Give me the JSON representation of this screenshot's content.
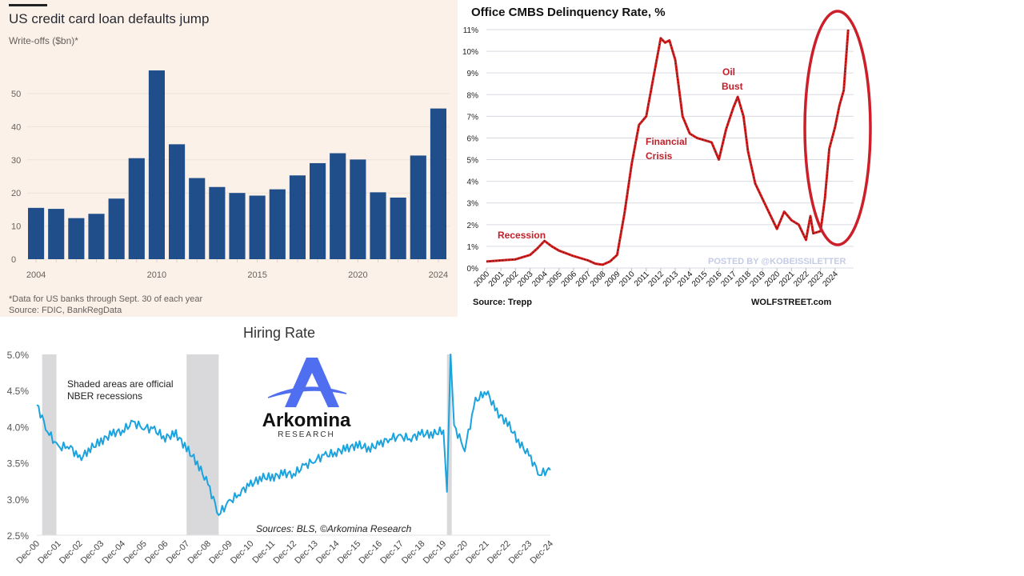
{
  "panels": {
    "ft": {
      "title": "US credit card loan defaults jump",
      "subtitle": "Write-offs ($bn)*",
      "footnote": "*Data for US banks through Sept. 30 of each year",
      "source": "Source: FDIC, BankRegData",
      "bar_color": "#1f4e8a",
      "bg_color": "#fcf1e8"
    },
    "wolf": {
      "title": "Office CMBS Delinquency Rate, %",
      "source": "Source: Trepp",
      "brand": "WOLFSTREET.com",
      "watermark": "POSTED BY @KOBEISSILETTER",
      "annotations": [
        "Recession",
        "Financial",
        "Crisis",
        "Oil",
        "Bust"
      ],
      "annotation_color": "#c0202a",
      "line_color": "#d41f1f",
      "circle_color": "#cc1f2a"
    },
    "hiring": {
      "title": "Hiring Rate",
      "note_line1": "Shaded areas are official",
      "note_line2": "NBER recessions",
      "sources": "Sources: BLS, ©Arkomina Research",
      "logo_name": "Arkomina",
      "logo_sub": "RESEARCH",
      "line_color": "#1ba3de",
      "shade_color": "#d9d9dc",
      "logo_color": "#4f6ef0"
    }
  },
  "chart_data": [
    {
      "type": "bar",
      "title": "US credit card loan defaults jump",
      "subtitle": "Write-offs ($bn)*",
      "xlabel": "",
      "ylabel": "Write-offs ($bn)",
      "categories": [
        "2004",
        "2005",
        "2006",
        "2007",
        "2008",
        "2009",
        "2010",
        "2011",
        "2012",
        "2013",
        "2014",
        "2015",
        "2016",
        "2017",
        "2018",
        "2019",
        "2020",
        "2021",
        "2022",
        "2023",
        "2024"
      ],
      "values": [
        15.5,
        15.2,
        12.4,
        13.7,
        18.3,
        30.5,
        57.0,
        34.7,
        24.5,
        21.8,
        20.0,
        19.2,
        21.1,
        25.3,
        29.0,
        32.0,
        30.1,
        20.2,
        18.6,
        31.3,
        45.5
      ],
      "yticks": [
        0,
        10,
        20,
        30,
        40,
        50
      ],
      "xticks": [
        "2004",
        "2010",
        "2015",
        "2020",
        "2024"
      ],
      "ylim": [
        0,
        58
      ],
      "grid": true,
      "legend": "none"
    },
    {
      "type": "line",
      "title": "Office CMBS Delinquency Rate, %",
      "xlabel": "",
      "ylabel": "%",
      "x": [
        2000.0,
        2001.0,
        2002.0,
        2003.0,
        2003.5,
        2004.0,
        2004.5,
        2005.0,
        2006.0,
        2007.0,
        2007.5,
        2008.0,
        2008.5,
        2009.0,
        2009.5,
        2010.0,
        2010.5,
        2011.0,
        2011.5,
        2012.0,
        2012.3,
        2012.6,
        2013.0,
        2013.5,
        2014.0,
        2014.5,
        2015.0,
        2015.5,
        2016.0,
        2016.5,
        2017.0,
        2017.3,
        2017.7,
        2018.0,
        2018.5,
        2019.0,
        2019.5,
        2020.0,
        2020.5,
        2021.0,
        2021.5,
        2022.0,
        2022.3,
        2022.5,
        2023.0,
        2023.3,
        2023.6,
        2024.0,
        2024.3,
        2024.6,
        2024.9
      ],
      "values": [
        0.3,
        0.35,
        0.4,
        0.6,
        0.9,
        1.25,
        1.0,
        0.8,
        0.55,
        0.35,
        0.2,
        0.15,
        0.3,
        0.6,
        2.5,
        4.8,
        6.6,
        7.0,
        8.8,
        10.6,
        10.4,
        10.5,
        9.6,
        7.0,
        6.2,
        6.0,
        5.9,
        5.8,
        5.0,
        6.4,
        7.4,
        7.9,
        7.0,
        5.4,
        3.9,
        3.2,
        2.5,
        1.8,
        2.6,
        2.2,
        2.0,
        1.3,
        2.4,
        1.6,
        1.7,
        3.2,
        5.5,
        6.5,
        7.5,
        8.2,
        11.0
      ],
      "yticks": [
        "0%",
        "1%",
        "2%",
        "3%",
        "4%",
        "5%",
        "6%",
        "7%",
        "8%",
        "9%",
        "10%",
        "11%"
      ],
      "xticks": [
        "2000",
        "2001",
        "2002",
        "2003",
        "2004",
        "2005",
        "2006",
        "2007",
        "2008",
        "2009",
        "2010",
        "2011",
        "2012",
        "2013",
        "2014",
        "2015",
        "2016",
        "2017",
        "2018",
        "2019",
        "2020",
        "2021",
        "2022",
        "2023",
        "2024"
      ],
      "ylim": [
        0,
        11
      ],
      "annotations": [
        "Recession",
        "Financial Crisis",
        "Oil Bust"
      ],
      "highlight": "red ellipse around 2023-2024 surge",
      "grid": true,
      "legend": "none"
    },
    {
      "type": "line",
      "title": "Hiring Rate",
      "xlabel": "",
      "ylabel": "",
      "x": [
        "Dec-00",
        "Jun-01",
        "Dec-01",
        "Jun-02",
        "Dec-02",
        "Jun-03",
        "Dec-03",
        "Jun-04",
        "Dec-04",
        "Jun-05",
        "Dec-05",
        "Jun-06",
        "Dec-06",
        "Jun-07",
        "Dec-07",
        "Jun-08",
        "Dec-08",
        "Jun-09",
        "Dec-09",
        "Jun-10",
        "Dec-10",
        "Jun-11",
        "Dec-11",
        "Jun-12",
        "Dec-12",
        "Jun-13",
        "Dec-13",
        "Jun-14",
        "Dec-14",
        "Jun-15",
        "Dec-15",
        "Jun-16",
        "Dec-16",
        "Jun-17",
        "Dec-17",
        "Jun-18",
        "Dec-18",
        "Jun-19",
        "Dec-19",
        "Feb-20",
        "Apr-20",
        "Jun-20",
        "Dec-20",
        "Jun-21",
        "Dec-21",
        "Jun-22",
        "Dec-22",
        "Jun-23",
        "Dec-23",
        "Jun-24",
        "Dec-24"
      ],
      "values": [
        4.3,
        3.95,
        3.7,
        3.75,
        3.55,
        3.7,
        3.8,
        3.9,
        3.95,
        4.05,
        4.0,
        3.95,
        3.85,
        3.9,
        3.7,
        3.5,
        3.2,
        2.8,
        2.95,
        3.1,
        3.2,
        3.3,
        3.3,
        3.35,
        3.35,
        3.45,
        3.55,
        3.6,
        3.65,
        3.7,
        3.75,
        3.7,
        3.75,
        3.85,
        3.85,
        3.85,
        3.9,
        3.9,
        3.95,
        3.1,
        5.0,
        4.0,
        3.7,
        4.35,
        4.5,
        4.2,
        4.05,
        3.8,
        3.6,
        3.35,
        3.4
      ],
      "yticks": [
        "2.5%",
        "3.0%",
        "3.5%",
        "4.0%",
        "4.5%",
        "5.0%"
      ],
      "xticks": [
        "Dec-00",
        "Dec-01",
        "Dec-02",
        "Dec-03",
        "Dec-04",
        "Dec-05",
        "Dec-06",
        "Dec-07",
        "Dec-08",
        "Dec-09",
        "Dec-10",
        "Dec-11",
        "Dec-12",
        "Dec-13",
        "Dec-14",
        "Dec-15",
        "Dec-16",
        "Dec-17",
        "Dec-18",
        "Dec-19",
        "Dec-20",
        "Dec-21",
        "Dec-22",
        "Dec-23",
        "Dec-24"
      ],
      "ylim": [
        2.5,
        5.0
      ],
      "shaded_recessions": [
        [
          "Mar-01",
          "Nov-01"
        ],
        [
          "Dec-07",
          "Jun-09"
        ],
        [
          "Feb-20",
          "Apr-20"
        ]
      ],
      "annotations": [
        "Shaded areas are official NBER recessions",
        "Sources: BLS, ©Arkomina Research"
      ],
      "grid": false,
      "legend": "none"
    }
  ]
}
